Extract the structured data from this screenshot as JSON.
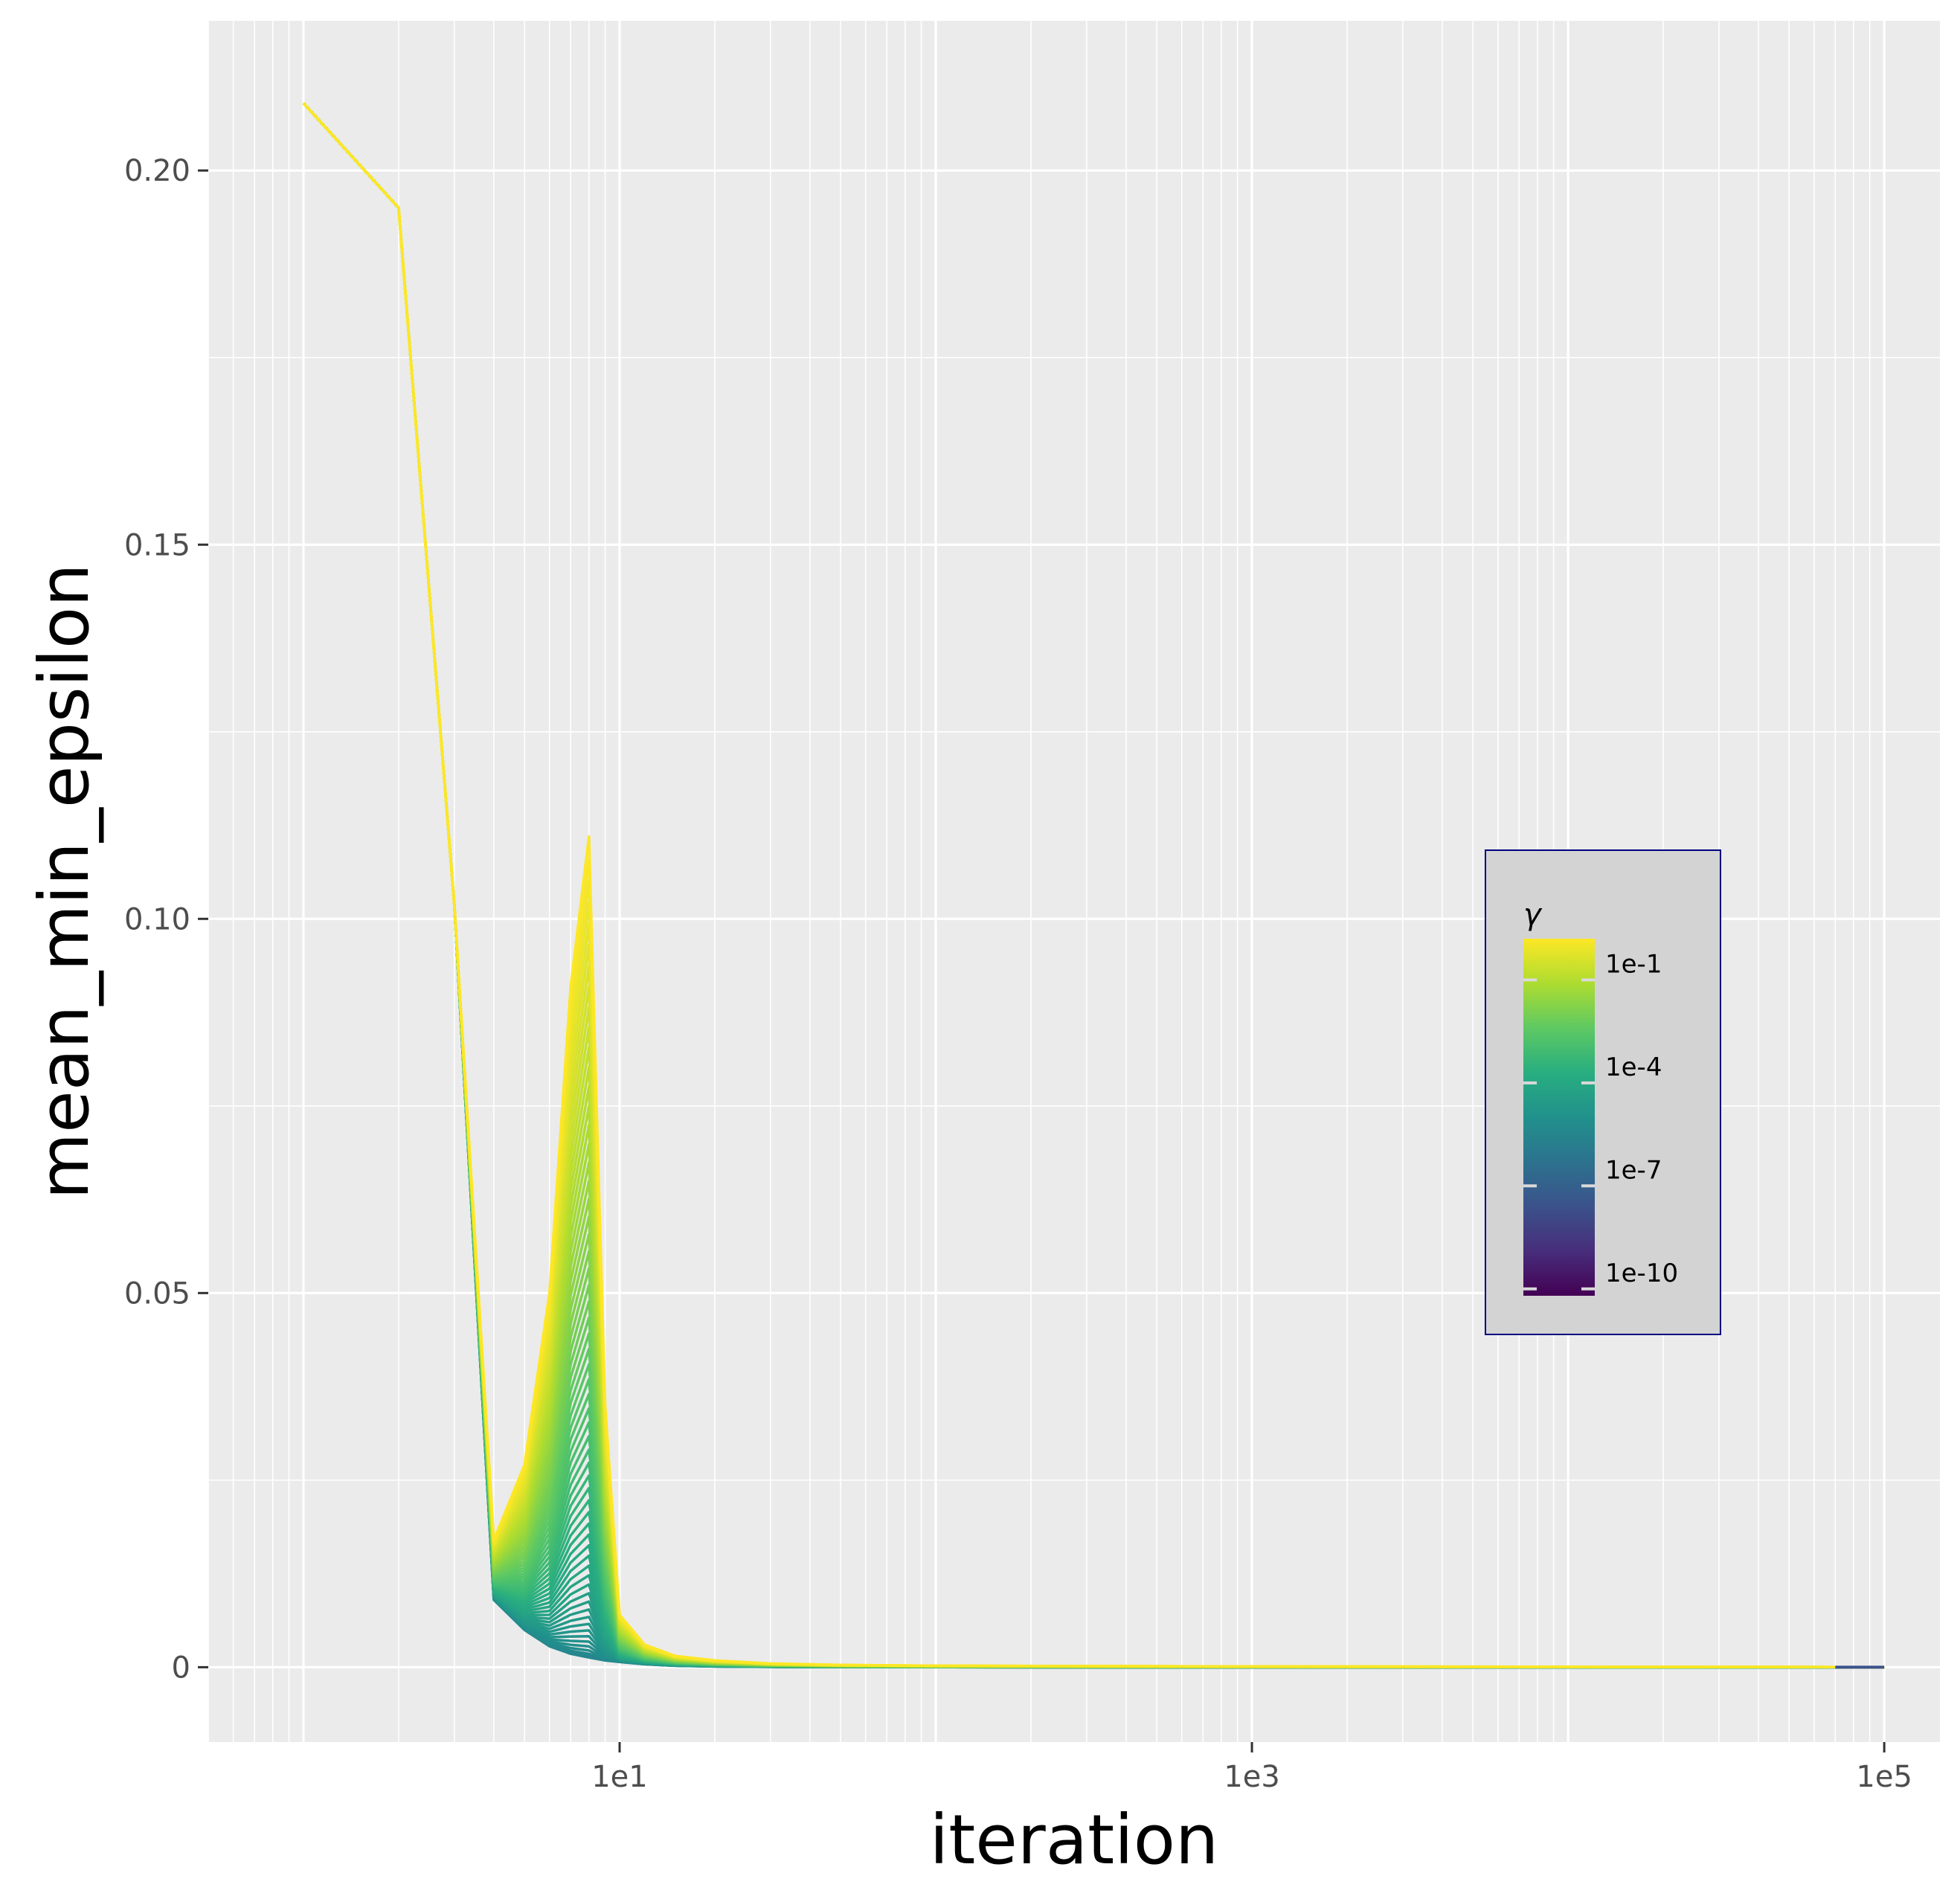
{
  "chart_data": {
    "type": "line",
    "xlabel": "iteration",
    "ylabel": "mean_min_epsilon",
    "x_scale": "log10",
    "xlim": [
      0.5,
      150000
    ],
    "ylim": [
      -0.01,
      0.22
    ],
    "x_ticks": [
      10,
      1000,
      100000
    ],
    "x_tick_labels": [
      "1e1",
      "1e3",
      "1e5"
    ],
    "y_ticks": [
      0,
      0.05,
      0.1,
      0.15,
      0.2
    ],
    "y_tick_labels": [
      "0",
      "0.05",
      "0.10",
      "0.15",
      "0.20"
    ],
    "grid": true,
    "x": [
      1,
      2,
      3,
      4,
      5,
      6,
      7,
      8,
      9,
      10,
      12,
      15,
      20,
      30,
      50,
      100,
      1000,
      10000,
      70000,
      100000
    ],
    "series_count": 60,
    "series_template": {
      "gamma_range_log10": [
        -10,
        0
      ],
      "low_gamma_values": [
        0.209,
        0.195,
        0.102,
        0.009,
        0.005,
        0.0028,
        0.0018,
        0.0013,
        0.0009,
        0.0007,
        0.0004,
        0.0002,
        0.0001,
        5e-05,
        2e-05,
        1e-05,
        0,
        0,
        0,
        0
      ],
      "high_gamma_values": [
        0.209,
        0.195,
        0.102,
        0.017,
        0.027,
        0.05,
        0.091,
        0.111,
        0.035,
        0.007,
        0.003,
        0.0015,
        0.0009,
        0.0005,
        0.0003,
        0.0002,
        0.0001,
        5e-05,
        2e-05,
        0
      ]
    },
    "legend": {
      "title": "γ",
      "position": "right-center",
      "labels": [
        "1e-1",
        "1e-4",
        "1e-7",
        "1e-10"
      ],
      "label_values_log10": [
        -1,
        -4,
        -7,
        -10
      ]
    },
    "colors": {
      "panel_bg": "#ebebeb",
      "grid": "#ffffff",
      "legend_bg": "#d3d3d3",
      "legend_border": "#000080",
      "colormap": "viridis"
    }
  }
}
